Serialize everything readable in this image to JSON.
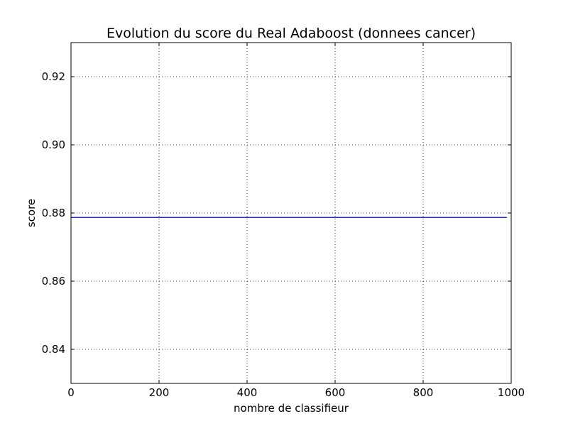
{
  "chart_data": {
    "type": "line",
    "title": "Evolution du score du Real Adaboost (donnees cancer)",
    "xlabel": "nombre de classifieur",
    "ylabel": "score",
    "xlim": [
      0,
      1000
    ],
    "ylim": [
      0.83,
      0.93
    ],
    "xticks": [
      0,
      200,
      400,
      600,
      800,
      1000
    ],
    "xtick_labels": [
      "0",
      "200",
      "400",
      "600",
      "800",
      "1000"
    ],
    "yticks": [
      0.84,
      0.86,
      0.88,
      0.9,
      0.92
    ],
    "ytick_labels": [
      "0.84",
      "0.86",
      "0.88",
      "0.90",
      "0.92"
    ],
    "grid": true,
    "series": [
      {
        "color": "#0000ff",
        "x": [
          0,
          990
        ],
        "y": [
          0.8787,
          0.8787
        ]
      }
    ]
  }
}
